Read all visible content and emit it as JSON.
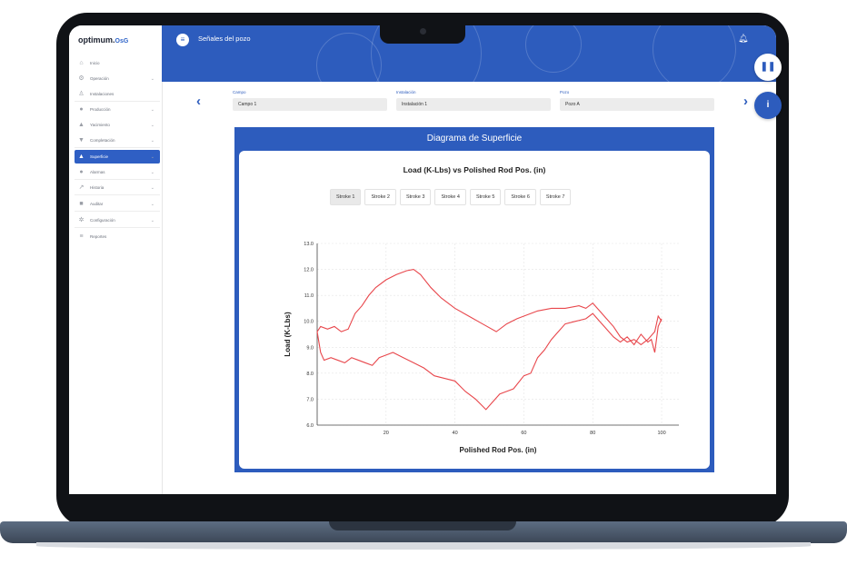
{
  "app": {
    "logo_main": "optimum.",
    "logo_suffix": "OsG"
  },
  "sidebar": {
    "items": [
      {
        "label": "Inicio",
        "icon": "home-icon",
        "glyph": "⌂",
        "chevron": false
      },
      {
        "label": "Operación",
        "icon": "operation-icon",
        "glyph": "⚙",
        "chevron": true
      },
      {
        "label": "Instalaciones",
        "icon": "tower-icon",
        "glyph": "♙",
        "chevron": false
      },
      {
        "label": "Producción",
        "icon": "drop-icon",
        "glyph": "●",
        "chevron": true
      },
      {
        "label": "Yacimiento",
        "icon": "reservoir-icon",
        "glyph": "▲",
        "chevron": true
      },
      {
        "label": "Completación",
        "icon": "completion-icon",
        "glyph": "▼",
        "chevron": true
      },
      {
        "label": "Superficie",
        "icon": "surface-icon",
        "glyph": "▲",
        "chevron": true,
        "active": true
      },
      {
        "label": "Alarmas",
        "icon": "bell-icon",
        "glyph": "●",
        "chevron": true
      },
      {
        "label": "Historia",
        "icon": "trend-icon",
        "glyph": "↗",
        "chevron": true
      },
      {
        "label": "Auditar",
        "icon": "audit-icon",
        "glyph": "■",
        "chevron": true
      },
      {
        "label": "Configuración",
        "icon": "gear-icon",
        "glyph": "✲",
        "chevron": true
      },
      {
        "label": "Reportes",
        "icon": "report-icon",
        "glyph": "≡",
        "chevron": false
      }
    ]
  },
  "header": {
    "menu_icon": "menu-icon",
    "title": "Señales del pozo",
    "bell_icon": "bell-icon"
  },
  "filters": {
    "campo": {
      "label": "Campo",
      "value": "Campo 1"
    },
    "instalacion": {
      "label": "Instalación",
      "value": "Instalación 1"
    },
    "pozo": {
      "label": "Pozo",
      "value": "Pozo A"
    }
  },
  "card": {
    "title": "Diagrama de Superficie"
  },
  "strokes": [
    "Stroke 1",
    "Stroke 2",
    "Stroke 3",
    "Stroke 4",
    "Stroke 5",
    "Stroke 6",
    "Stroke 7"
  ],
  "colors": {
    "accent": "#2d5cbd",
    "series": "#e8474c"
  },
  "chart_data": {
    "type": "line",
    "title": "Load (K-Lbs) vs Polished Rod Pos. (in)",
    "xlabel": "Polished Rod Pos. (in)",
    "ylabel": "Load (K-Lbs)",
    "xlim": [
      0,
      105
    ],
    "ylim": [
      6.0,
      13.0
    ],
    "xticks": [
      20,
      40,
      60,
      80,
      100
    ],
    "yticks": [
      "6.0",
      "7.0",
      "8.0",
      "9.0",
      "10.0",
      "11.0",
      "12.0",
      "13.0"
    ],
    "grid": true,
    "series": [
      {
        "x": [
          0,
          1,
          3,
          5,
          7,
          9,
          11,
          13,
          15,
          17,
          20,
          23,
          26,
          28,
          30,
          33,
          36,
          40,
          44,
          48,
          52,
          55,
          58,
          60,
          64,
          68,
          72,
          76,
          78,
          80,
          82,
          84,
          86,
          88,
          90,
          92,
          94,
          96,
          98,
          99,
          100
        ],
        "y": [
          9.6,
          9.8,
          9.7,
          9.8,
          9.6,
          9.7,
          10.3,
          10.6,
          11.0,
          11.3,
          11.6,
          11.8,
          11.95,
          12.0,
          11.8,
          11.3,
          10.9,
          10.5,
          10.2,
          9.9,
          9.6,
          9.9,
          10.1,
          10.2,
          10.4,
          10.5,
          10.5,
          10.6,
          10.5,
          10.7,
          10.4,
          10.1,
          9.8,
          9.4,
          9.2,
          9.3,
          9.1,
          9.3,
          9.6,
          10.2,
          10.0
        ]
      },
      {
        "x": [
          0,
          1,
          2,
          4,
          6,
          8,
          10,
          12,
          14,
          16,
          18,
          20,
          22,
          25,
          28,
          31,
          34,
          37,
          40,
          43,
          46,
          49,
          51,
          53,
          55,
          57,
          60,
          62,
          64,
          66,
          68,
          70,
          72,
          75,
          78,
          80,
          82,
          84,
          86,
          88,
          90,
          92,
          94,
          96,
          97,
          98,
          99,
          100
        ],
        "y": [
          9.6,
          8.8,
          8.5,
          8.6,
          8.5,
          8.4,
          8.6,
          8.5,
          8.4,
          8.3,
          8.6,
          8.7,
          8.8,
          8.6,
          8.4,
          8.2,
          7.9,
          7.8,
          7.7,
          7.3,
          7.0,
          6.6,
          6.9,
          7.2,
          7.3,
          7.4,
          7.9,
          8.0,
          8.6,
          8.9,
          9.3,
          9.6,
          9.9,
          10.0,
          10.1,
          10.3,
          10.0,
          9.7,
          9.4,
          9.2,
          9.4,
          9.1,
          9.5,
          9.2,
          9.3,
          8.8,
          9.8,
          10.1
        ]
      }
    ]
  }
}
